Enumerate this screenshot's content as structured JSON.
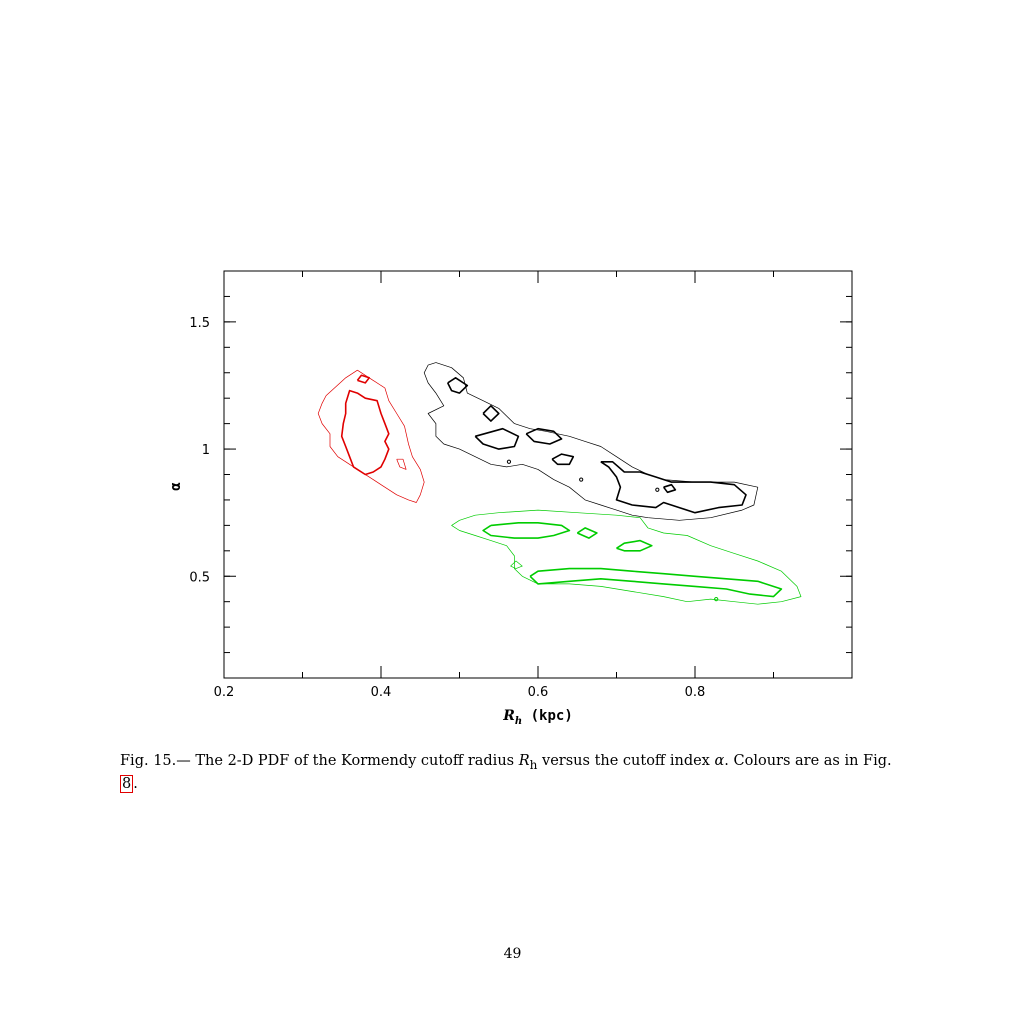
{
  "page": {
    "caption_prefix": "Fig. 15.— The 2-D PDF of the Kormendy cutoff radius ",
    "caption_symbol_1": "R",
    "caption_symbol_1_sub": "h",
    "caption_middle": " versus the cutoff index ",
    "caption_symbol_2": "α",
    "caption_after": ". Colours are as in Fig. ",
    "caption_ref": "8",
    "caption_end": ".",
    "page_number": "49"
  },
  "chart_data": {
    "type": "contour",
    "xlabel_main": "R",
    "xlabel_sub": "h",
    "xlabel_unit": " (kpc)",
    "ylabel": "α",
    "xlim": [
      0.2,
      1.0
    ],
    "ylim": [
      0.1,
      1.7
    ],
    "xticks": [
      {
        "value": 0.2,
        "label": "0.2"
      },
      {
        "value": 0.4,
        "label": "0.4"
      },
      {
        "value": 0.6,
        "label": "0.6"
      },
      {
        "value": 0.8,
        "label": "0.8"
      }
    ],
    "yticks": [
      {
        "value": 0.5,
        "label": "0.5"
      },
      {
        "value": 1.0,
        "label": "1"
      },
      {
        "value": 1.5,
        "label": "1.5"
      }
    ],
    "x_minor_step": 0.1,
    "y_minor_step": 0.1,
    "grid": false,
    "colors": {
      "red": "#e00000",
      "black": "#000000",
      "green": "#00cc00"
    },
    "contours": [
      {
        "color": "red",
        "level": "outer",
        "points": [
          [
            0.33,
            1.21
          ],
          [
            0.355,
            1.28
          ],
          [
            0.37,
            1.31
          ],
          [
            0.39,
            1.27
          ],
          [
            0.405,
            1.24
          ],
          [
            0.41,
            1.19
          ],
          [
            0.42,
            1.14
          ],
          [
            0.43,
            1.09
          ],
          [
            0.435,
            1.02
          ],
          [
            0.44,
            0.97
          ],
          [
            0.45,
            0.92
          ],
          [
            0.455,
            0.87
          ],
          [
            0.45,
            0.82
          ],
          [
            0.445,
            0.79
          ],
          [
            0.435,
            0.8
          ],
          [
            0.42,
            0.82
          ],
          [
            0.405,
            0.85
          ],
          [
            0.39,
            0.88
          ],
          [
            0.37,
            0.92
          ],
          [
            0.355,
            0.95
          ],
          [
            0.345,
            0.97
          ],
          [
            0.335,
            1.01
          ],
          [
            0.335,
            1.06
          ],
          [
            0.325,
            1.1
          ],
          [
            0.32,
            1.14
          ],
          [
            0.325,
            1.18
          ],
          [
            0.33,
            1.21
          ]
        ]
      },
      {
        "color": "red",
        "level": "inner",
        "points": [
          [
            0.355,
            1.18
          ],
          [
            0.36,
            1.23
          ],
          [
            0.37,
            1.22
          ],
          [
            0.38,
            1.2
          ],
          [
            0.395,
            1.19
          ],
          [
            0.4,
            1.14
          ],
          [
            0.405,
            1.1
          ],
          [
            0.41,
            1.06
          ],
          [
            0.405,
            1.03
          ],
          [
            0.41,
            1.0
          ],
          [
            0.405,
            0.96
          ],
          [
            0.4,
            0.93
          ],
          [
            0.39,
            0.91
          ],
          [
            0.38,
            0.9
          ],
          [
            0.365,
            0.93
          ],
          [
            0.36,
            0.97
          ],
          [
            0.355,
            1.01
          ],
          [
            0.35,
            1.05
          ],
          [
            0.352,
            1.1
          ],
          [
            0.355,
            1.14
          ],
          [
            0.355,
            1.18
          ]
        ]
      },
      {
        "color": "red",
        "level": "inner",
        "points": [
          [
            0.37,
            1.27
          ],
          [
            0.375,
            1.29
          ],
          [
            0.385,
            1.28
          ],
          [
            0.38,
            1.26
          ],
          [
            0.37,
            1.27
          ]
        ]
      },
      {
        "color": "red",
        "level": "outer",
        "points": [
          [
            0.42,
            0.96
          ],
          [
            0.428,
            0.96
          ],
          [
            0.432,
            0.92
          ],
          [
            0.424,
            0.93
          ],
          [
            0.42,
            0.96
          ]
        ]
      },
      {
        "color": "black",
        "level": "outer",
        "points": [
          [
            0.47,
            1.34
          ],
          [
            0.49,
            1.32
          ],
          [
            0.505,
            1.28
          ],
          [
            0.51,
            1.22
          ],
          [
            0.53,
            1.19
          ],
          [
            0.55,
            1.16
          ],
          [
            0.57,
            1.1
          ],
          [
            0.59,
            1.08
          ],
          [
            0.61,
            1.07
          ],
          [
            0.64,
            1.05
          ],
          [
            0.66,
            1.03
          ],
          [
            0.68,
            1.01
          ],
          [
            0.7,
            0.97
          ],
          [
            0.72,
            0.93
          ],
          [
            0.74,
            0.9
          ],
          [
            0.76,
            0.88
          ],
          [
            0.8,
            0.87
          ],
          [
            0.85,
            0.87
          ],
          [
            0.88,
            0.85
          ],
          [
            0.875,
            0.78
          ],
          [
            0.86,
            0.76
          ],
          [
            0.82,
            0.73
          ],
          [
            0.78,
            0.72
          ],
          [
            0.74,
            0.73
          ],
          [
            0.72,
            0.74
          ],
          [
            0.7,
            0.76
          ],
          [
            0.68,
            0.78
          ],
          [
            0.66,
            0.8
          ],
          [
            0.64,
            0.85
          ],
          [
            0.62,
            0.88
          ],
          [
            0.6,
            0.92
          ],
          [
            0.58,
            0.94
          ],
          [
            0.56,
            0.93
          ],
          [
            0.54,
            0.94
          ],
          [
            0.52,
            0.97
          ],
          [
            0.5,
            1.0
          ],
          [
            0.48,
            1.02
          ],
          [
            0.47,
            1.05
          ],
          [
            0.47,
            1.1
          ],
          [
            0.46,
            1.14
          ],
          [
            0.48,
            1.17
          ],
          [
            0.47,
            1.22
          ],
          [
            0.46,
            1.26
          ],
          [
            0.455,
            1.3
          ],
          [
            0.46,
            1.33
          ],
          [
            0.47,
            1.34
          ]
        ]
      },
      {
        "color": "black",
        "level": "inner",
        "points": [
          [
            0.485,
            1.26
          ],
          [
            0.495,
            1.28
          ],
          [
            0.51,
            1.25
          ],
          [
            0.5,
            1.22
          ],
          [
            0.49,
            1.23
          ],
          [
            0.485,
            1.26
          ]
        ]
      },
      {
        "color": "black",
        "level": "inner",
        "points": [
          [
            0.53,
            1.14
          ],
          [
            0.54,
            1.17
          ],
          [
            0.55,
            1.14
          ],
          [
            0.54,
            1.11
          ],
          [
            0.53,
            1.14
          ]
        ]
      },
      {
        "color": "black",
        "level": "inner",
        "points": [
          [
            0.52,
            1.05
          ],
          [
            0.555,
            1.08
          ],
          [
            0.575,
            1.05
          ],
          [
            0.57,
            1.01
          ],
          [
            0.55,
            1.0
          ],
          [
            0.53,
            1.02
          ],
          [
            0.52,
            1.05
          ]
        ]
      },
      {
        "color": "black",
        "level": "inner",
        "points": [
          [
            0.585,
            1.06
          ],
          [
            0.6,
            1.08
          ],
          [
            0.62,
            1.07
          ],
          [
            0.63,
            1.04
          ],
          [
            0.615,
            1.02
          ],
          [
            0.595,
            1.03
          ],
          [
            0.585,
            1.06
          ]
        ]
      },
      {
        "color": "black",
        "level": "inner",
        "points": [
          [
            0.618,
            0.96
          ],
          [
            0.63,
            0.98
          ],
          [
            0.645,
            0.97
          ],
          [
            0.64,
            0.94
          ],
          [
            0.625,
            0.94
          ],
          [
            0.618,
            0.96
          ]
        ]
      },
      {
        "color": "black",
        "level": "inner",
        "points": [
          [
            0.68,
            0.95
          ],
          [
            0.69,
            0.93
          ],
          [
            0.7,
            0.89
          ],
          [
            0.705,
            0.85
          ],
          [
            0.7,
            0.8
          ],
          [
            0.72,
            0.78
          ],
          [
            0.75,
            0.77
          ],
          [
            0.76,
            0.79
          ],
          [
            0.78,
            0.77
          ],
          [
            0.8,
            0.75
          ],
          [
            0.83,
            0.77
          ],
          [
            0.86,
            0.78
          ],
          [
            0.865,
            0.82
          ],
          [
            0.85,
            0.86
          ],
          [
            0.82,
            0.87
          ],
          [
            0.79,
            0.87
          ],
          [
            0.77,
            0.87
          ],
          [
            0.75,
            0.89
          ],
          [
            0.73,
            0.91
          ],
          [
            0.71,
            0.91
          ],
          [
            0.695,
            0.95
          ],
          [
            0.68,
            0.95
          ]
        ]
      },
      {
        "color": "black",
        "level": "inner",
        "points": [
          [
            0.76,
            0.85
          ],
          [
            0.77,
            0.86
          ],
          [
            0.775,
            0.84
          ],
          [
            0.765,
            0.83
          ],
          [
            0.76,
            0.85
          ]
        ]
      },
      {
        "color": "green",
        "level": "outer",
        "points": [
          [
            0.5,
            0.72
          ],
          [
            0.52,
            0.74
          ],
          [
            0.55,
            0.75
          ],
          [
            0.6,
            0.76
          ],
          [
            0.65,
            0.75
          ],
          [
            0.7,
            0.74
          ],
          [
            0.73,
            0.73
          ],
          [
            0.74,
            0.69
          ],
          [
            0.76,
            0.67
          ],
          [
            0.79,
            0.66
          ],
          [
            0.82,
            0.62
          ],
          [
            0.85,
            0.59
          ],
          [
            0.88,
            0.56
          ],
          [
            0.91,
            0.52
          ],
          [
            0.93,
            0.46
          ],
          [
            0.935,
            0.42
          ],
          [
            0.91,
            0.4
          ],
          [
            0.88,
            0.39
          ],
          [
            0.85,
            0.4
          ],
          [
            0.82,
            0.41
          ],
          [
            0.79,
            0.4
          ],
          [
            0.76,
            0.42
          ],
          [
            0.72,
            0.44
          ],
          [
            0.68,
            0.46
          ],
          [
            0.64,
            0.47
          ],
          [
            0.6,
            0.47
          ],
          [
            0.58,
            0.5
          ],
          [
            0.57,
            0.53
          ],
          [
            0.57,
            0.58
          ],
          [
            0.56,
            0.62
          ],
          [
            0.54,
            0.64
          ],
          [
            0.52,
            0.66
          ],
          [
            0.5,
            0.68
          ],
          [
            0.49,
            0.7
          ],
          [
            0.5,
            0.72
          ]
        ]
      },
      {
        "color": "green",
        "level": "inner",
        "points": [
          [
            0.54,
            0.7
          ],
          [
            0.575,
            0.71
          ],
          [
            0.6,
            0.71
          ],
          [
            0.63,
            0.7
          ],
          [
            0.64,
            0.68
          ],
          [
            0.62,
            0.66
          ],
          [
            0.6,
            0.65
          ],
          [
            0.57,
            0.65
          ],
          [
            0.54,
            0.66
          ],
          [
            0.53,
            0.68
          ],
          [
            0.54,
            0.7
          ]
        ]
      },
      {
        "color": "green",
        "level": "inner",
        "points": [
          [
            0.65,
            0.67
          ],
          [
            0.66,
            0.69
          ],
          [
            0.675,
            0.67
          ],
          [
            0.665,
            0.65
          ],
          [
            0.65,
            0.67
          ]
        ]
      },
      {
        "color": "green",
        "level": "inner",
        "points": [
          [
            0.7,
            0.61
          ],
          [
            0.71,
            0.63
          ],
          [
            0.73,
            0.64
          ],
          [
            0.745,
            0.62
          ],
          [
            0.73,
            0.6
          ],
          [
            0.71,
            0.6
          ],
          [
            0.7,
            0.61
          ]
        ]
      },
      {
        "color": "green",
        "level": "inner",
        "points": [
          [
            0.59,
            0.5
          ],
          [
            0.6,
            0.52
          ],
          [
            0.64,
            0.53
          ],
          [
            0.68,
            0.53
          ],
          [
            0.72,
            0.52
          ],
          [
            0.76,
            0.51
          ],
          [
            0.8,
            0.5
          ],
          [
            0.84,
            0.49
          ],
          [
            0.88,
            0.48
          ],
          [
            0.91,
            0.45
          ],
          [
            0.9,
            0.42
          ],
          [
            0.87,
            0.43
          ],
          [
            0.84,
            0.45
          ],
          [
            0.8,
            0.46
          ],
          [
            0.76,
            0.47
          ],
          [
            0.72,
            0.48
          ],
          [
            0.68,
            0.49
          ],
          [
            0.64,
            0.48
          ],
          [
            0.6,
            0.47
          ],
          [
            0.59,
            0.5
          ]
        ]
      },
      {
        "color": "green",
        "level": "outer",
        "points": [
          [
            0.565,
            0.54
          ],
          [
            0.572,
            0.56
          ],
          [
            0.58,
            0.54
          ],
          [
            0.572,
            0.53
          ],
          [
            0.565,
            0.54
          ]
        ]
      }
    ],
    "markers": [
      {
        "color": "black",
        "x": 0.563,
        "y": 0.95
      },
      {
        "color": "black",
        "x": 0.655,
        "y": 0.88
      },
      {
        "color": "black",
        "x": 0.752,
        "y": 0.84
      },
      {
        "color": "green",
        "x": 0.827,
        "y": 0.41
      }
    ]
  }
}
